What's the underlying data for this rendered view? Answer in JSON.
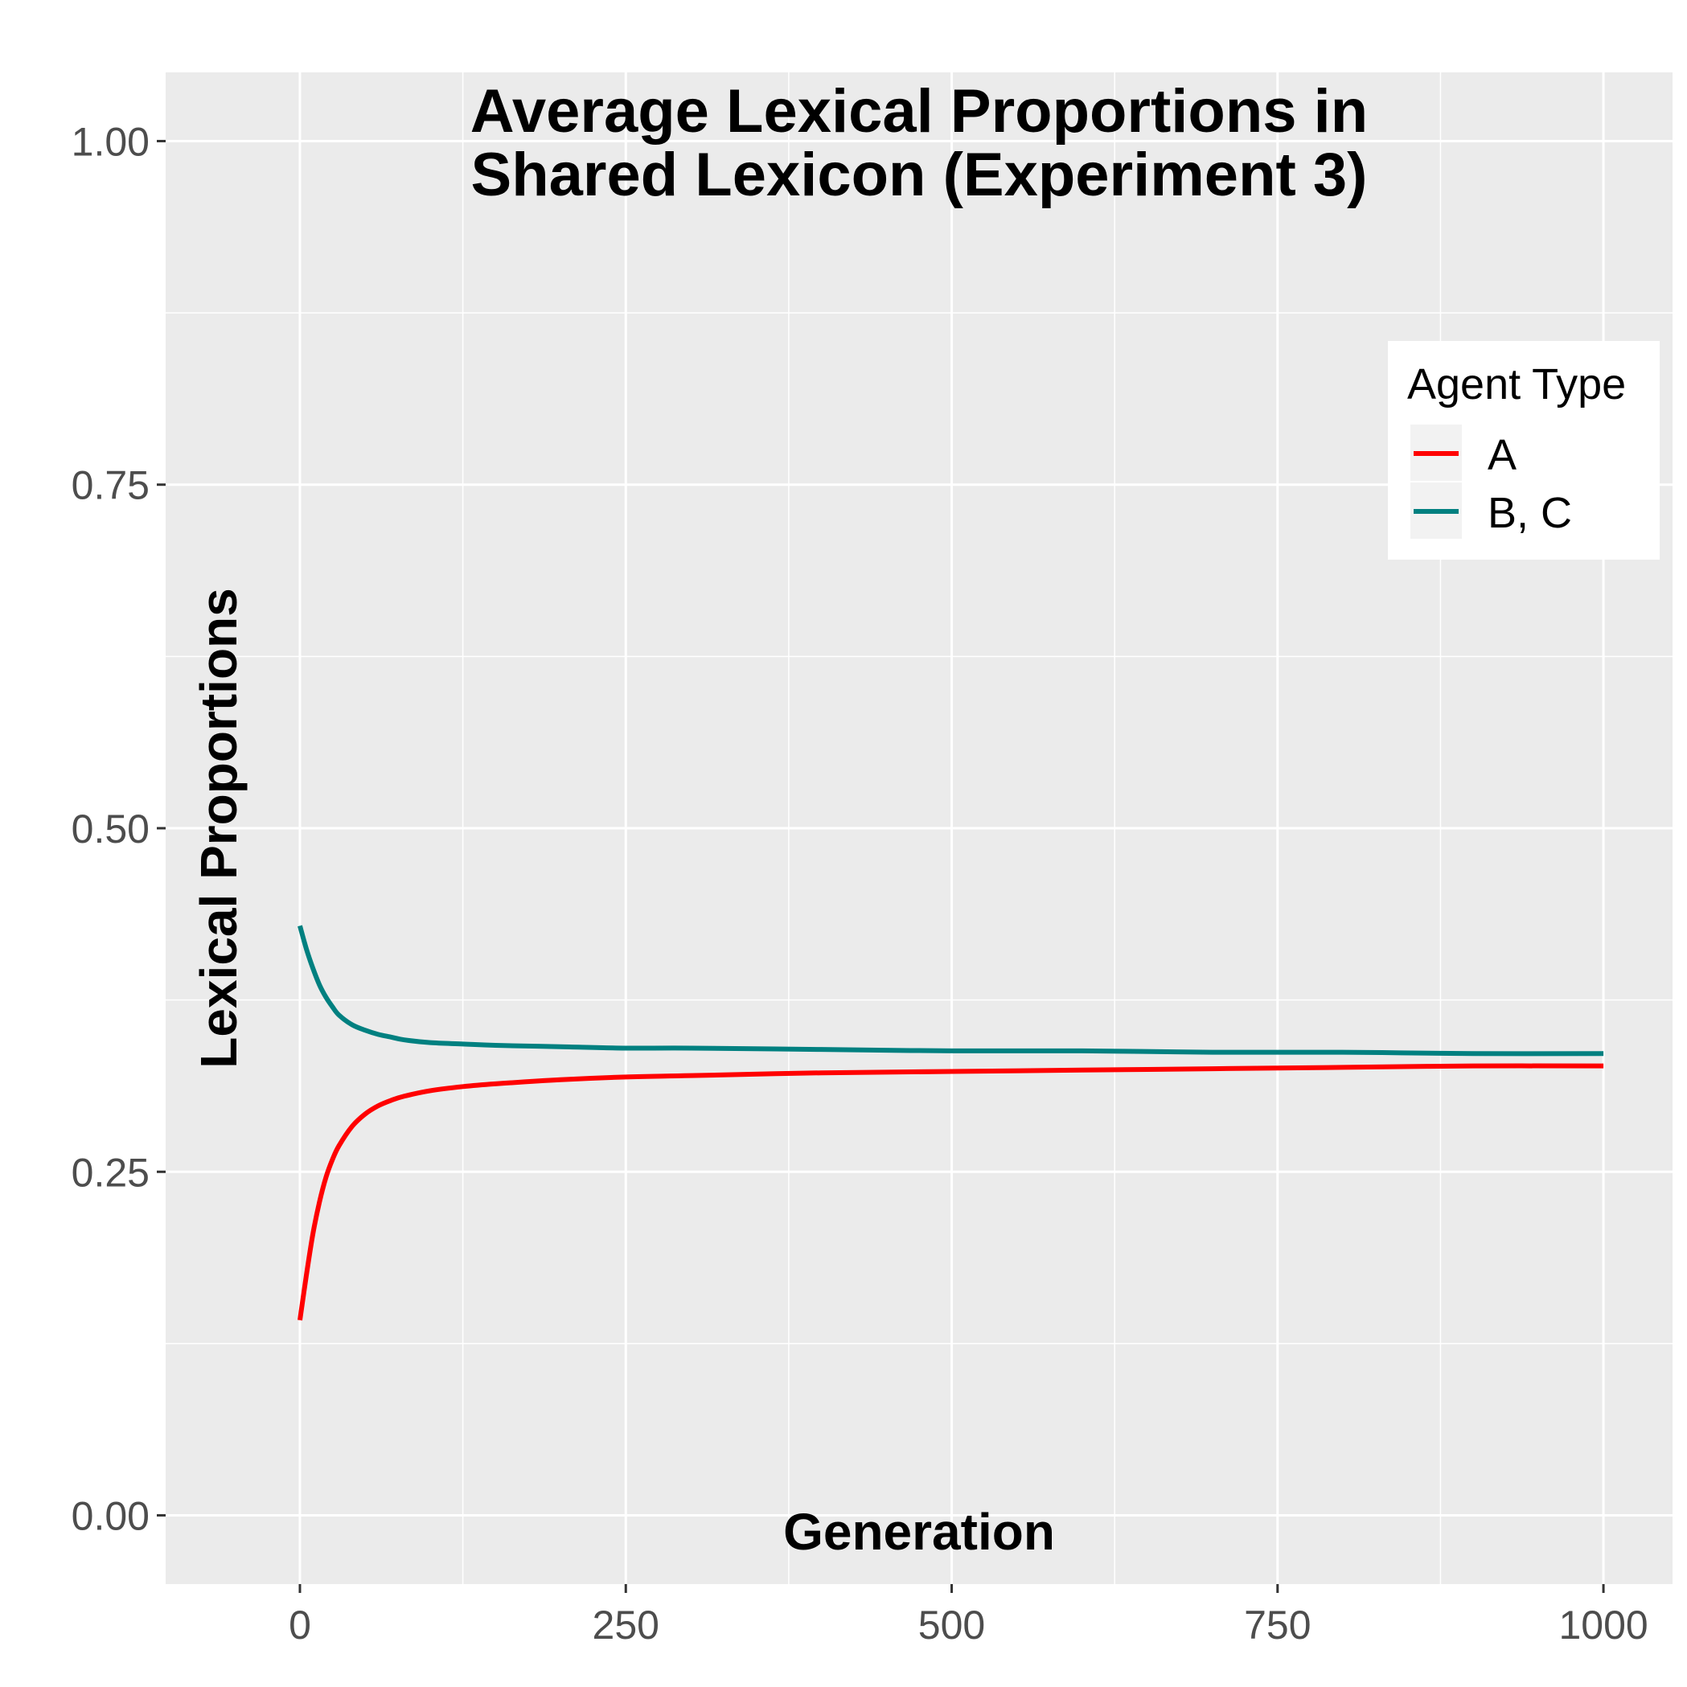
{
  "chart_data": {
    "type": "line",
    "title_lines": [
      "Average Lexical Proportions in",
      "Shared Lexicon (Experiment 3)"
    ],
    "xlabel": "Generation",
    "ylabel": "Lexical Proportions",
    "xlim": [
      -103,
      1053
    ],
    "ylim": [
      -0.05,
      1.05
    ],
    "x_ticks": [
      0,
      250,
      500,
      750,
      1000
    ],
    "x_tick_labels": [
      "0",
      "250",
      "500",
      "750",
      "1000"
    ],
    "y_ticks": [
      0,
      0.25,
      0.5,
      0.75,
      1.0
    ],
    "y_tick_labels": [
      "0.00",
      "0.25",
      "0.50",
      "0.75",
      "1.00"
    ],
    "grid": true,
    "legend": {
      "title": "Agent Type",
      "position": "right"
    },
    "series": [
      {
        "name": "A",
        "color": "#ff0000",
        "x": [
          0,
          5,
          10,
          15,
          20,
          25,
          30,
          40,
          50,
          60,
          70,
          80,
          100,
          125,
          150,
          200,
          250,
          300,
          400,
          500,
          600,
          700,
          800,
          900,
          1000
        ],
        "y": [
          0.142,
          0.175,
          0.205,
          0.228,
          0.246,
          0.259,
          0.269,
          0.283,
          0.292,
          0.298,
          0.302,
          0.305,
          0.309,
          0.312,
          0.314,
          0.317,
          0.319,
          0.32,
          0.322,
          0.323,
          0.324,
          0.325,
          0.326,
          0.327,
          0.327
        ]
      },
      {
        "name": "B, C",
        "color": "#008080",
        "x": [
          0,
          5,
          10,
          15,
          20,
          25,
          30,
          40,
          50,
          60,
          70,
          80,
          100,
          125,
          150,
          200,
          250,
          300,
          400,
          500,
          600,
          700,
          800,
          900,
          1000
        ],
        "y": [
          0.429,
          0.412,
          0.398,
          0.386,
          0.377,
          0.37,
          0.364,
          0.357,
          0.353,
          0.35,
          0.348,
          0.346,
          0.344,
          0.343,
          0.342,
          0.341,
          0.34,
          0.34,
          0.339,
          0.338,
          0.338,
          0.337,
          0.337,
          0.336,
          0.336
        ]
      }
    ]
  }
}
